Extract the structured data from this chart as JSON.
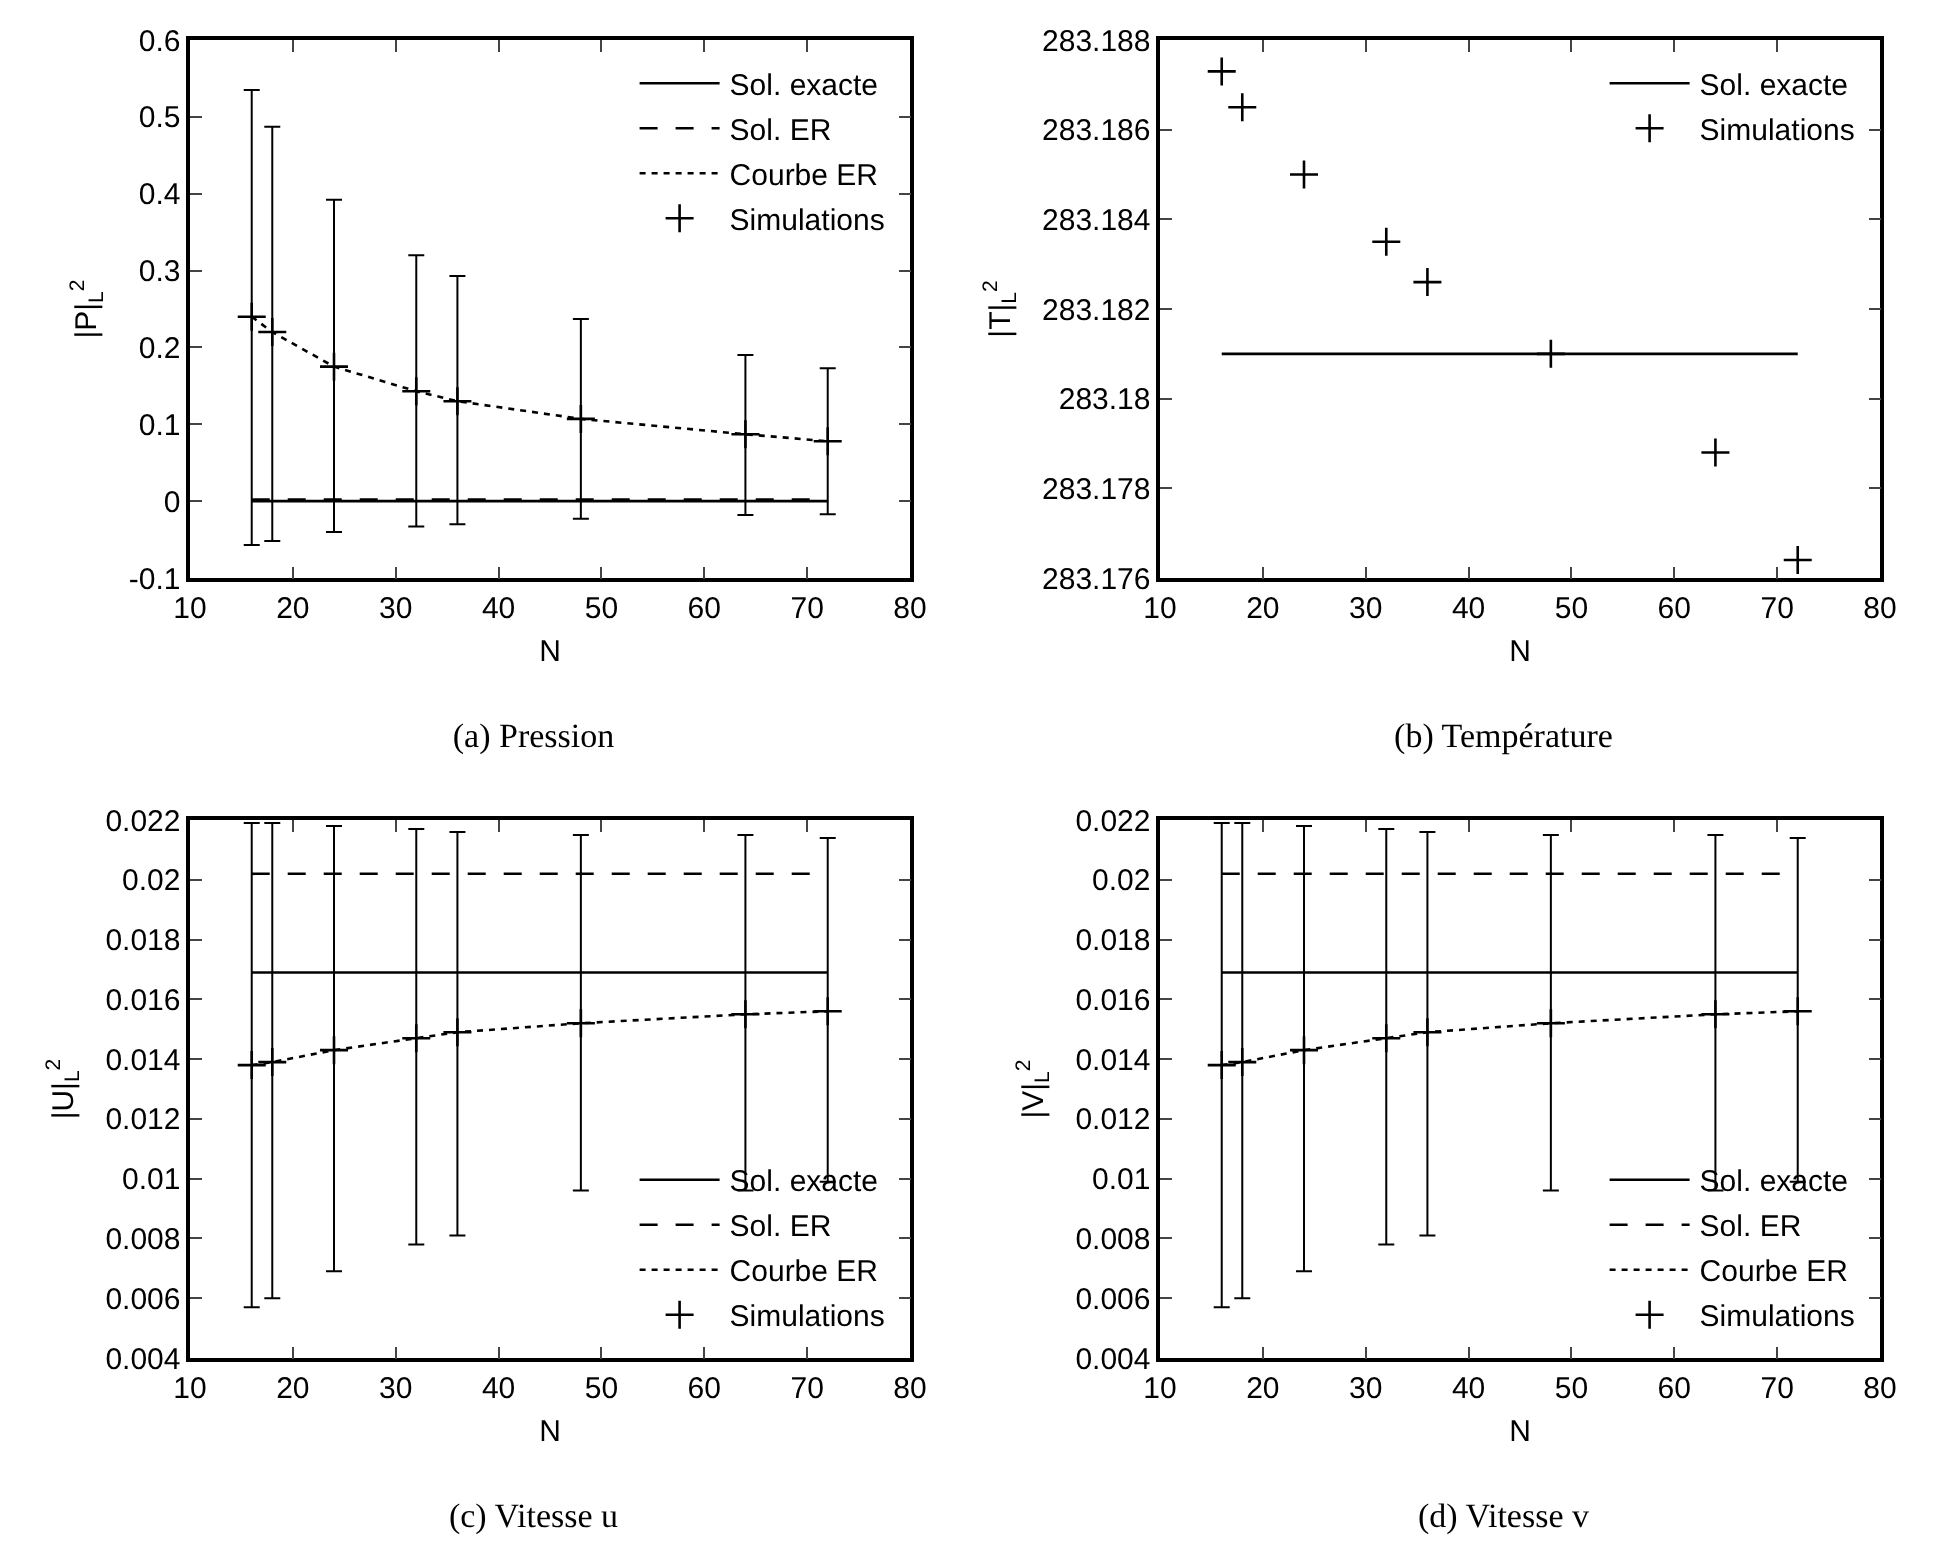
{
  "chart_data": [
    {
      "type": "line",
      "title": "(a) Pression",
      "xlabel": "N",
      "ylabel": "|P|$_{L}$$^{2}$",
      "xlim": [
        10,
        80
      ],
      "xticks": [
        10,
        20,
        30,
        40,
        50,
        60,
        70,
        80
      ],
      "ylim": [
        -0.1,
        0.6
      ],
      "yticks": [
        -0.1,
        0,
        0.1,
        0.2,
        0.3,
        0.4,
        0.5,
        0.6
      ],
      "legend": "top right",
      "grid": false,
      "series": [
        {
          "name": "Sol. exacte",
          "color": "#000000",
          "line_style": "solid",
          "x": [
            16,
            72
          ],
          "values": [
            0,
            0
          ]
        },
        {
          "name": "Sol. ER",
          "color": "#000000",
          "line_style": "dashed",
          "x": [
            16,
            72
          ],
          "values": [
            0.002,
            0.002
          ]
        },
        {
          "name": "Courbe ER",
          "color": "#000000",
          "line_style": "dotted",
          "x": [
            16,
            18,
            24,
            32,
            36,
            48,
            64,
            72
          ],
          "values": [
            0.24,
            0.22,
            0.175,
            0.143,
            0.13,
            0.107,
            0.087,
            0.078
          ]
        },
        {
          "name": "Simulations",
          "type": "scatter",
          "marker": "cross",
          "color": "#000000",
          "x": [
            16,
            18,
            24,
            32,
            36,
            48,
            64,
            72
          ],
          "values": [
            0.24,
            0.22,
            0.175,
            0.143,
            0.13,
            0.107,
            0.087,
            0.078
          ],
          "errors": [
            [
              -0.057,
              0.535
            ],
            [
              -0.052,
              0.487
            ],
            [
              -0.04,
              0.392
            ],
            [
              -0.033,
              0.32
            ],
            [
              -0.03,
              0.293
            ],
            [
              -0.023,
              0.237
            ],
            [
              -0.018,
              0.19
            ],
            [
              -0.017,
              0.173
            ]
          ]
        }
      ]
    },
    {
      "type": "line",
      "title": "(b) Température",
      "xlabel": "N",
      "ylabel": "|T|$_{L}$$^{2}$",
      "xlim": [
        10,
        80
      ],
      "xticks": [
        10,
        20,
        30,
        40,
        50,
        60,
        70,
        80
      ],
      "ylim": [
        283.176,
        283.188
      ],
      "yticks": [
        283.176,
        283.178,
        283.18,
        283.182,
        283.184,
        283.186,
        283.188
      ],
      "legend": "top right",
      "grid": false,
      "series": [
        {
          "name": "Sol. exacte",
          "color": "#000000",
          "line_style": "solid",
          "x": [
            16,
            72
          ],
          "values": [
            283.181,
            283.181
          ]
        },
        {
          "name": "Simulations",
          "type": "scatter",
          "marker": "cross",
          "color": "#000000",
          "x": [
            16,
            18,
            24,
            32,
            36,
            48,
            64,
            72
          ],
          "values": [
            283.1873,
            283.1865,
            283.185,
            283.1835,
            283.1826,
            283.181,
            283.1788,
            283.1764
          ]
        }
      ]
    },
    {
      "type": "line",
      "title": "(c) Vitesse u",
      "xlabel": "N",
      "ylabel": "|U|$_{L}$$^{2}$",
      "xlim": [
        10,
        80
      ],
      "xticks": [
        10,
        20,
        30,
        40,
        50,
        60,
        70,
        80
      ],
      "ylim": [
        0.004,
        0.022
      ],
      "yticks": [
        0.004,
        0.006,
        0.008,
        0.01,
        0.012,
        0.014,
        0.016,
        0.018,
        0.02,
        0.022
      ],
      "legend": "bottom right",
      "grid": false,
      "series": [
        {
          "name": "Sol. exacte",
          "color": "#000000",
          "line_style": "solid",
          "x": [
            16,
            72
          ],
          "values": [
            0.0169,
            0.0169
          ]
        },
        {
          "name": "Sol. ER",
          "color": "#000000",
          "line_style": "dashed",
          "x": [
            16,
            72
          ],
          "values": [
            0.0202,
            0.0202
          ]
        },
        {
          "name": "Courbe ER",
          "color": "#000000",
          "line_style": "dotted",
          "x": [
            16,
            18,
            24,
            32,
            36,
            48,
            64,
            72
          ],
          "values": [
            0.0138,
            0.0139,
            0.0143,
            0.0147,
            0.0149,
            0.0152,
            0.0155,
            0.0156
          ]
        },
        {
          "name": "Simulations",
          "type": "scatter",
          "marker": "cross",
          "color": "#000000",
          "x": [
            16,
            18,
            24,
            32,
            36,
            48,
            64,
            72
          ],
          "values": [
            0.0138,
            0.0139,
            0.0143,
            0.0147,
            0.0149,
            0.0152,
            0.0155,
            0.0156
          ],
          "errors": [
            [
              0.0057,
              0.0219
            ],
            [
              0.006,
              0.0219
            ],
            [
              0.0069,
              0.0218
            ],
            [
              0.0078,
              0.0217
            ],
            [
              0.0081,
              0.0216
            ],
            [
              0.0096,
              0.0215
            ],
            [
              0.0096,
              0.0215
            ],
            [
              0.0099,
              0.0214
            ]
          ]
        }
      ]
    },
    {
      "type": "line",
      "title": "(d) Vitesse v",
      "xlabel": "N",
      "ylabel": "|V|$_{L}$$^{2}$",
      "xlim": [
        10,
        80
      ],
      "xticks": [
        10,
        20,
        30,
        40,
        50,
        60,
        70,
        80
      ],
      "ylim": [
        0.004,
        0.022
      ],
      "yticks": [
        0.004,
        0.006,
        0.008,
        0.01,
        0.012,
        0.014,
        0.016,
        0.018,
        0.02,
        0.022
      ],
      "legend": "bottom right",
      "grid": false,
      "series": [
        {
          "name": "Sol. exacte",
          "color": "#000000",
          "line_style": "solid",
          "x": [
            16,
            72
          ],
          "values": [
            0.0169,
            0.0169
          ]
        },
        {
          "name": "Sol. ER",
          "color": "#000000",
          "line_style": "dashed",
          "x": [
            16,
            72
          ],
          "values": [
            0.0202,
            0.0202
          ]
        },
        {
          "name": "Courbe ER",
          "color": "#000000",
          "line_style": "dotted",
          "x": [
            16,
            18,
            24,
            32,
            36,
            48,
            64,
            72
          ],
          "values": [
            0.0138,
            0.0139,
            0.0143,
            0.0147,
            0.0149,
            0.0152,
            0.0155,
            0.0156
          ]
        },
        {
          "name": "Simulations",
          "type": "scatter",
          "marker": "cross",
          "color": "#000000",
          "x": [
            16,
            18,
            24,
            32,
            36,
            48,
            64,
            72
          ],
          "values": [
            0.0138,
            0.0139,
            0.0143,
            0.0147,
            0.0149,
            0.0152,
            0.0155,
            0.0156
          ],
          "errors": [
            [
              0.0057,
              0.0219
            ],
            [
              0.006,
              0.0219
            ],
            [
              0.0069,
              0.0218
            ],
            [
              0.0078,
              0.0217
            ],
            [
              0.0081,
              0.0216
            ],
            [
              0.0096,
              0.0215
            ],
            [
              0.0096,
              0.0215
            ],
            [
              0.0099,
              0.0214
            ]
          ]
        }
      ]
    }
  ]
}
